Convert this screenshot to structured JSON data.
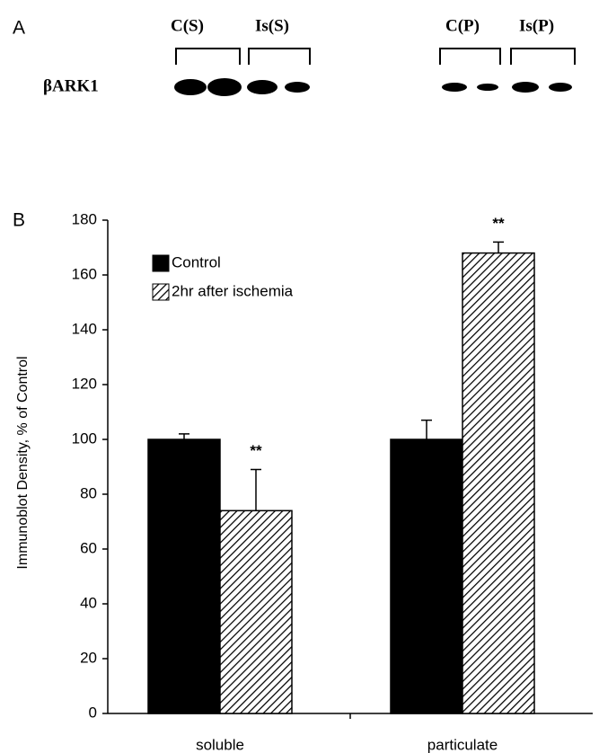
{
  "panel_a": {
    "label": "A",
    "protein": "βARK1",
    "groups": [
      "C(S)",
      "Is(S)",
      "C(P)",
      "Is(P)"
    ]
  },
  "chart_data": {
    "type": "bar",
    "panel_label": "B",
    "y_label": "Immunoblot Density, % of Control",
    "categories": [
      "soluble",
      "particulate"
    ],
    "series": [
      {
        "name": "Control",
        "color": "#000000",
        "values": [
          100,
          100
        ],
        "errors": [
          2,
          7
        ]
      },
      {
        "name": "2hr after ischemia",
        "color": "#000000",
        "hatch": true,
        "values": [
          74,
          168
        ],
        "errors": [
          15,
          4
        ]
      }
    ],
    "annotations": [
      "**",
      "**"
    ],
    "ylim": [
      0,
      180
    ],
    "yticks": [
      0,
      20,
      40,
      60,
      80,
      100,
      120,
      140,
      160,
      180
    ],
    "grid": false,
    "legend": "upper left"
  }
}
